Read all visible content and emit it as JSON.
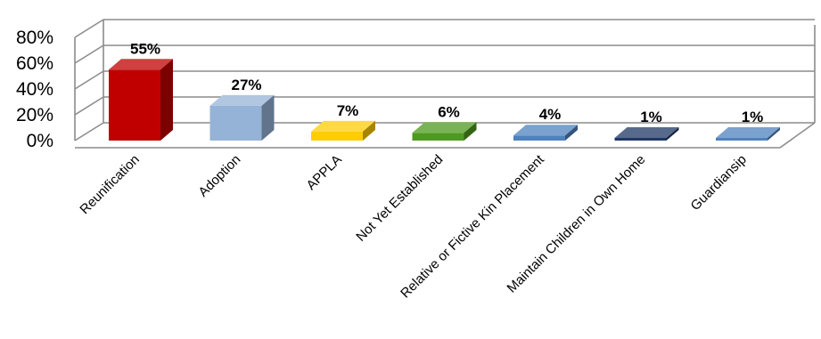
{
  "chart_data": {
    "type": "bar",
    "categories": [
      "Reunification",
      "Adoption",
      "APPLA",
      "Not Yet Established",
      "Relative or Fictive Kin Placement",
      "Maintain Children in Own Home",
      "Guardiansip"
    ],
    "values": [
      55,
      27,
      7,
      6,
      4,
      1,
      1
    ],
    "data_labels": [
      "55%",
      "27%",
      "7%",
      "6%",
      "4%",
      "1%",
      "1%"
    ],
    "yticks": [
      "0%",
      "20%",
      "40%",
      "60%",
      "80%"
    ],
    "ylim": [
      0,
      80
    ],
    "grid": true,
    "bar_colors": [
      "#c00000",
      "#95b3d7",
      "#ffcc00",
      "#4e9a1e",
      "#4f81bd",
      "#1f3864",
      "#4f81bd"
    ]
  }
}
